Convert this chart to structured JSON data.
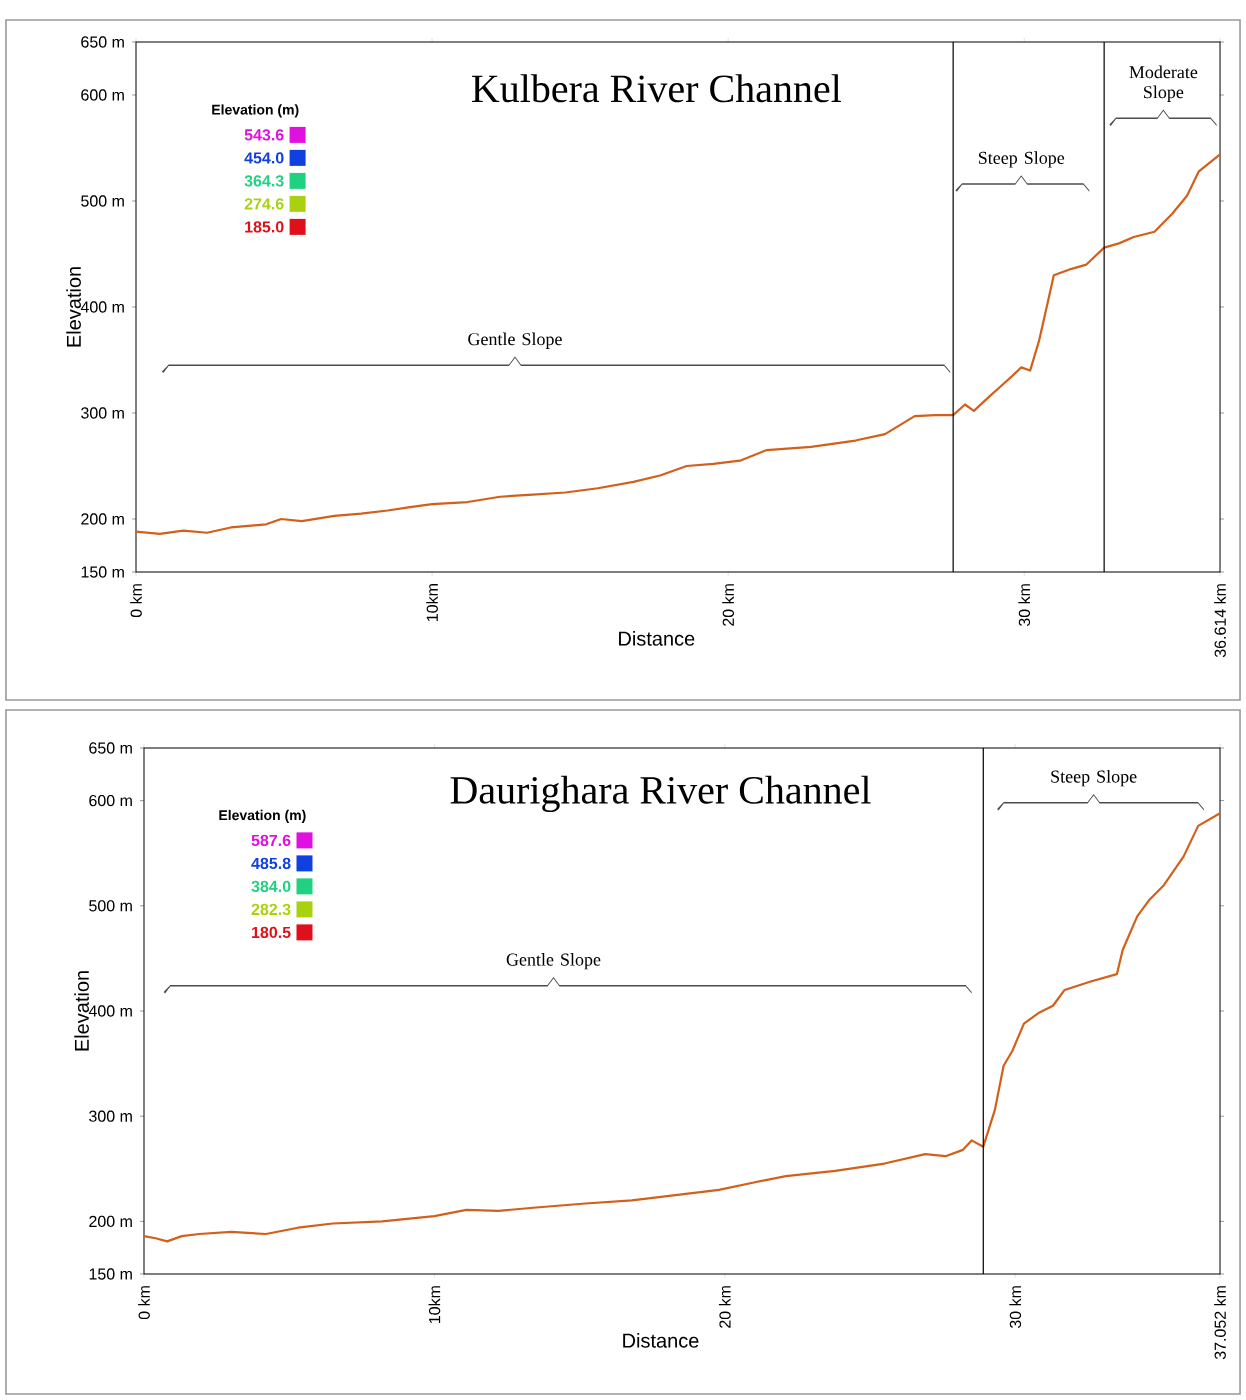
{
  "chart_data": [
    {
      "type": "line",
      "title": "Kulbera River Channel",
      "xlabel": "Distance",
      "ylabel": "Elevation",
      "xlim": [
        0,
        36.614
      ],
      "ylim": [
        150,
        650
      ],
      "xticks": [
        {
          "value": 0,
          "label": "0 km"
        },
        {
          "value": 10,
          "label": "10km"
        },
        {
          "value": 20,
          "label": "20 km"
        },
        {
          "value": 30,
          "label": "30 km"
        },
        {
          "value": 36.614,
          "label": "36.614 km"
        }
      ],
      "yticks": [
        {
          "value": 150,
          "label": "150 m"
        },
        {
          "value": 200,
          "label": "200 m"
        },
        {
          "value": 300,
          "label": "300 m"
        },
        {
          "value": 400,
          "label": "400 m"
        },
        {
          "value": 500,
          "label": "500 m"
        },
        {
          "value": 600,
          "label": "600 m"
        },
        {
          "value": 650,
          "label": "650 m"
        }
      ],
      "series": [
        {
          "color": "#d2601a",
          "x": [
            0,
            0.8,
            1.6,
            2.4,
            3.2,
            4.0,
            4.4,
            4.9,
            5.6,
            6.7,
            7.6,
            8.5,
            9.2,
            10.0,
            11.2,
            12.3,
            13.4,
            14.5,
            15.6,
            16.8,
            17.7,
            18.6,
            19.5,
            20.4,
            21.3,
            22.8,
            24.3,
            25.3,
            26.3,
            27.0,
            27.6,
            28.0,
            28.3,
            28.8,
            29.2,
            29.6,
            29.9,
            30.2,
            30.5,
            30.8,
            31.0,
            31.6,
            32.1,
            32.7,
            33.2,
            33.7,
            34.4,
            35.0,
            35.5,
            35.9,
            36.614
          ],
          "values": [
            188,
            186,
            189,
            187,
            192,
            194,
            195,
            200,
            198,
            203,
            205,
            208,
            211,
            214,
            216,
            221,
            223,
            225,
            229,
            235,
            241,
            250,
            252,
            255,
            265,
            268,
            274,
            280,
            297,
            298,
            298,
            308,
            302,
            315,
            325,
            335,
            343,
            340,
            368,
            405,
            430,
            436,
            440,
            456,
            460,
            466,
            471,
            488,
            505,
            528,
            544
          ]
        }
      ],
      "ref_lines": [
        {
          "axis": "x",
          "value": 27.6
        },
        {
          "axis": "x",
          "value": 32.7
        }
      ],
      "annotations": [
        "Elevation (m)",
        "543.6",
        "454.0",
        "364.3",
        "274.6",
        "185.0",
        "Gentle Slope",
        "Steep Slope",
        "Moderate Slope"
      ],
      "grid": false
    },
    {
      "type": "line",
      "title": "Daurighara River Channel",
      "xlabel": "Distance",
      "ylabel": "Elevation",
      "xlim": [
        0,
        37.052
      ],
      "ylim": [
        150,
        650
      ],
      "xticks": [
        {
          "value": 0,
          "label": "0 km"
        },
        {
          "value": 10,
          "label": "10km"
        },
        {
          "value": 20,
          "label": "20 km"
        },
        {
          "value": 30,
          "label": "30 km"
        },
        {
          "value": 37.052,
          "label": "37.052 km"
        }
      ],
      "yticks": [
        {
          "value": 150,
          "label": "150 m"
        },
        {
          "value": 200,
          "label": "200 m"
        },
        {
          "value": 300,
          "label": "300 m"
        },
        {
          "value": 400,
          "label": "400 m"
        },
        {
          "value": 500,
          "label": "500 m"
        },
        {
          "value": 600,
          "label": "600 m"
        },
        {
          "value": 650,
          "label": "650 m"
        }
      ],
      "series": [
        {
          "color": "#d2601a",
          "x": [
            0,
            0.4,
            0.8,
            1.3,
            1.9,
            3.0,
            4.2,
            5.3,
            6.5,
            8.2,
            10.0,
            11.1,
            12.2,
            13.4,
            15.2,
            16.8,
            18.3,
            19.8,
            21.0,
            22.1,
            23.8,
            25.5,
            26.9,
            27.6,
            28.2,
            28.5,
            28.9,
            29.3,
            29.6,
            29.9,
            30.3,
            30.8,
            31.3,
            31.7,
            32.6,
            33.5,
            33.7,
            34.2,
            34.6,
            35.1,
            35.8,
            36.3,
            37.052
          ],
          "values": [
            186,
            184,
            181,
            186,
            188,
            190,
            188,
            194,
            198,
            200,
            205,
            211,
            210,
            213,
            217,
            220,
            225,
            230,
            237,
            243,
            248,
            255,
            264,
            262,
            268,
            277,
            271,
            306,
            348,
            362,
            388,
            398,
            405,
            420,
            428,
            435,
            458,
            490,
            505,
            519,
            547,
            576,
            588
          ]
        }
      ],
      "ref_lines": [
        {
          "axis": "x",
          "value": 28.9
        }
      ],
      "annotations": [
        "Elevation (m)",
        "587.6",
        "485.8",
        "384.0",
        "282.3",
        "180.5",
        "Gentle Slope",
        "Steep Slope"
      ],
      "grid": false
    }
  ]
}
